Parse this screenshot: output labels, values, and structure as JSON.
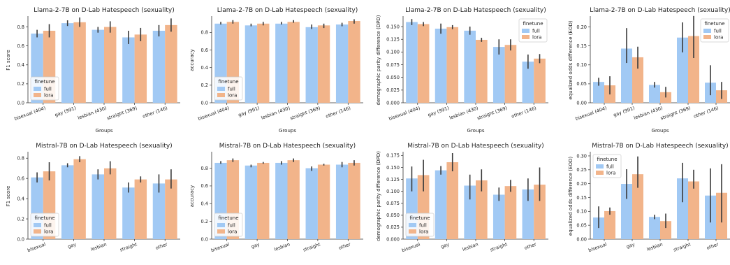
{
  "colors": {
    "full": "#a1c9f4",
    "lora": "#f2b48a",
    "errorbar": "#3a3a3a",
    "axis": "#333333"
  },
  "chart_data": [
    {
      "type": "bar",
      "title": "Llama-2-7B on D-Lab Hatespeech (sexuality)",
      "xlabel": "Groups",
      "ylabel": "F1 score",
      "categories": [
        "bisexual (404)",
        "gay (991)",
        "lesbian (430)",
        "straight (369)",
        "other (146)"
      ],
      "ylim": [
        0,
        0.9
      ],
      "yticks": [
        "0.0",
        "0.2",
        "0.4",
        "0.6",
        "0.8"
      ],
      "ytick_values": [
        0,
        0.2,
        0.4,
        0.6,
        0.8
      ],
      "legend": {
        "title": "finetune",
        "placement": "lower-left"
      },
      "series": [
        {
          "name": "full",
          "values": [
            0.73,
            0.84,
            0.77,
            0.69,
            0.76
          ],
          "err": [
            [
              0.69,
              0.77
            ],
            [
              0.81,
              0.87
            ],
            [
              0.74,
              0.8
            ],
            [
              0.62,
              0.76
            ],
            [
              0.7,
              0.82
            ]
          ]
        },
        {
          "name": "lora",
          "values": [
            0.76,
            0.85,
            0.8,
            0.72,
            0.82
          ],
          "err": [
            [
              0.69,
              0.83
            ],
            [
              0.8,
              0.9
            ],
            [
              0.74,
              0.86
            ],
            [
              0.65,
              0.79
            ],
            [
              0.75,
              0.89
            ]
          ]
        }
      ]
    },
    {
      "type": "bar",
      "title": "Llama-2-7B on D-Lab Hatespeech (sexuality)",
      "xlabel": "Groups",
      "ylabel": "accuracy",
      "categories": [
        "bisexual (404)",
        "gay (991)",
        "lesbian (430)",
        "straight (369)",
        "other (146)"
      ],
      "ylim": [
        0,
        0.97
      ],
      "yticks": [
        "0.0",
        "0.2",
        "0.4",
        "0.6",
        "0.8"
      ],
      "ytick_values": [
        0,
        0.2,
        0.4,
        0.6,
        0.8
      ],
      "legend": {
        "title": "finetune",
        "placement": "lower-left"
      },
      "series": [
        {
          "name": "full",
          "values": [
            0.9,
            0.88,
            0.9,
            0.86,
            0.89
          ],
          "err": [
            [
              0.89,
              0.92
            ],
            [
              0.87,
              0.9
            ],
            [
              0.89,
              0.92
            ],
            [
              0.84,
              0.89
            ],
            [
              0.87,
              0.91
            ]
          ]
        },
        {
          "name": "lora",
          "values": [
            0.92,
            0.9,
            0.92,
            0.88,
            0.93
          ],
          "err": [
            [
              0.9,
              0.94
            ],
            [
              0.88,
              0.92
            ],
            [
              0.91,
              0.94
            ],
            [
              0.85,
              0.9
            ],
            [
              0.9,
              0.95
            ]
          ]
        }
      ]
    },
    {
      "type": "bar",
      "title": "Llama-2-7B on D-Lab Hatespeech (sexuality)",
      "xlabel": "Groups",
      "ylabel": "demographic parity difference (DPD)",
      "categories": [
        "bisexual (404)",
        "gay (991)",
        "lesbian (430)",
        "straight (369)",
        "other (146)"
      ],
      "ylim": [
        0,
        0.168
      ],
      "yticks": [
        "0.000",
        "0.025",
        "0.050",
        "0.075",
        "0.100",
        "0.125",
        "0.150"
      ],
      "ytick_values": [
        0,
        0.025,
        0.05,
        0.075,
        0.1,
        0.125,
        0.15
      ],
      "legend": {
        "title": "finetune",
        "placement": "upper-right"
      },
      "series": [
        {
          "name": "full",
          "values": [
            0.159,
            0.146,
            0.142,
            0.11,
            0.081
          ],
          "err": [
            [
              0.153,
              0.165
            ],
            [
              0.136,
              0.156
            ],
            [
              0.134,
              0.15
            ],
            [
              0.095,
              0.125
            ],
            [
              0.067,
              0.095
            ]
          ]
        },
        {
          "name": "lora",
          "values": [
            0.155,
            0.149,
            0.124,
            0.114,
            0.087
          ],
          "err": [
            [
              0.151,
              0.159
            ],
            [
              0.145,
              0.153
            ],
            [
              0.12,
              0.128
            ],
            [
              0.103,
              0.125
            ],
            [
              0.078,
              0.096
            ]
          ]
        }
      ]
    },
    {
      "type": "bar",
      "title": "Llama-2-7B on D-Lab Hatespeech (sexuality)",
      "xlabel": "Groups",
      "ylabel": "equalized odds difference (EOD)",
      "categories": [
        "bisexual (404)",
        "gay (991)",
        "lesbian (430)",
        "straight (369)",
        "other (146)"
      ],
      "ylim": [
        0,
        0.225
      ],
      "yticks": [
        "0.00",
        "0.05",
        "0.10",
        "0.15",
        "0.20"
      ],
      "ytick_values": [
        0,
        0.05,
        0.1,
        0.15,
        0.2
      ],
      "legend": {
        "title": "finetune",
        "placement": "upper-right"
      },
      "series": [
        {
          "name": "full",
          "values": [
            0.055,
            0.143,
            0.047,
            0.172,
            0.053
          ],
          "err": [
            [
              0.045,
              0.066
            ],
            [
              0.105,
              0.197
            ],
            [
              0.04,
              0.055
            ],
            [
              0.133,
              0.212
            ],
            [
              0.02,
              0.099
            ]
          ]
        },
        {
          "name": "lora",
          "values": [
            0.046,
            0.12,
            0.028,
            0.176,
            0.033
          ],
          "err": [
            [
              0.022,
              0.07
            ],
            [
              0.09,
              0.148
            ],
            [
              0.014,
              0.042
            ],
            [
              0.118,
              0.229
            ],
            [
              0.01,
              0.055
            ]
          ]
        }
      ]
    },
    {
      "type": "bar",
      "title": "Mistral-7B on D-Lab Hatespeech (sexuality)",
      "xlabel": "Groups",
      "ylabel": "F1 score",
      "categories": [
        "bisexual",
        "gay",
        "lesbian",
        "straight",
        "other"
      ],
      "ylim": [
        0,
        0.85
      ],
      "yticks": [
        "0.0",
        "0.2",
        "0.4",
        "0.6",
        "0.8"
      ],
      "ytick_values": [
        0,
        0.2,
        0.4,
        0.6,
        0.8
      ],
      "legend": {
        "title": "finetune",
        "placement": "lower-left"
      },
      "series": [
        {
          "name": "full",
          "values": [
            0.61,
            0.73,
            0.64,
            0.51,
            0.55
          ],
          "err": [
            [
              0.56,
              0.66
            ],
            [
              0.71,
              0.75
            ],
            [
              0.59,
              0.69
            ],
            [
              0.46,
              0.56
            ],
            [
              0.46,
              0.64
            ]
          ]
        },
        {
          "name": "lora",
          "values": [
            0.67,
            0.79,
            0.7,
            0.59,
            0.59
          ],
          "err": [
            [
              0.58,
              0.76
            ],
            [
              0.76,
              0.82
            ],
            [
              0.64,
              0.77
            ],
            [
              0.56,
              0.62
            ],
            [
              0.5,
              0.69
            ]
          ]
        }
      ]
    },
    {
      "type": "bar",
      "title": "Mistral-7B on D-Lab Hatespeech (sexuality)",
      "xlabel": "Groups",
      "ylabel": "accuracy",
      "categories": [
        "bisexual",
        "gay",
        "lesbian",
        "straight",
        "other"
      ],
      "ylim": [
        0,
        0.97
      ],
      "yticks": [
        "0.0",
        "0.2",
        "0.4",
        "0.6",
        "0.8"
      ],
      "ytick_values": [
        0,
        0.2,
        0.4,
        0.6,
        0.8
      ],
      "legend": {
        "title": "finetune",
        "placement": "lower-left"
      },
      "series": [
        {
          "name": "full",
          "values": [
            0.86,
            0.83,
            0.86,
            0.8,
            0.84
          ],
          "err": [
            [
              0.85,
              0.88
            ],
            [
              0.81,
              0.84
            ],
            [
              0.84,
              0.88
            ],
            [
              0.77,
              0.82
            ],
            [
              0.81,
              0.87
            ]
          ]
        },
        {
          "name": "lora",
          "values": [
            0.89,
            0.86,
            0.89,
            0.84,
            0.86
          ],
          "err": [
            [
              0.87,
              0.91
            ],
            [
              0.85,
              0.87
            ],
            [
              0.87,
              0.91
            ],
            [
              0.83,
              0.85
            ],
            [
              0.83,
              0.89
            ]
          ]
        }
      ]
    },
    {
      "type": "bar",
      "title": "Mistral-7B on D-Lab Hatespeech (sexuality)",
      "xlabel": "Groups",
      "ylabel": "demographic parity difference (DPD)",
      "categories": [
        "bisexual",
        "gay",
        "lesbian",
        "straight",
        "other"
      ],
      "ylim": [
        0,
        0.18
      ],
      "yticks": [
        "0.000",
        "0.025",
        "0.050",
        "0.075",
        "0.100",
        "0.125",
        "0.150",
        "0.175"
      ],
      "ytick_values": [
        0,
        0.025,
        0.05,
        0.075,
        0.1,
        0.125,
        0.15,
        0.175
      ],
      "legend": {
        "title": "finetune",
        "placement": "lower-left"
      },
      "series": [
        {
          "name": "full",
          "values": [
            0.127,
            0.144,
            0.112,
            0.093,
            0.104
          ],
          "err": [
            [
              0.1,
              0.152
            ],
            [
              0.135,
              0.153
            ],
            [
              0.083,
              0.135
            ],
            [
              0.08,
              0.108
            ],
            [
              0.08,
              0.127
            ]
          ]
        },
        {
          "name": "lora",
          "values": [
            0.134,
            0.161,
            0.123,
            0.111,
            0.114
          ],
          "err": [
            [
              0.1,
              0.166
            ],
            [
              0.142,
              0.18
            ],
            [
              0.1,
              0.146
            ],
            [
              0.099,
              0.124
            ],
            [
              0.08,
              0.15
            ]
          ]
        }
      ]
    },
    {
      "type": "bar",
      "title": "Mistral-7B on D-Lab Hatespeech (sexuality)",
      "xlabel": "Groups",
      "ylabel": "equalized odds difference (EOD)",
      "categories": [
        "bisexual",
        "gay",
        "lesbian",
        "straight",
        "other"
      ],
      "ylim": [
        0,
        0.31
      ],
      "yticks": [
        "0.00",
        "0.05",
        "0.10",
        "0.15",
        "0.20",
        "0.25",
        "0.30"
      ],
      "ytick_values": [
        0,
        0.05,
        0.1,
        0.15,
        0.2,
        0.25,
        0.3
      ],
      "legend": {
        "title": "finetune",
        "placement": "upper-left"
      },
      "series": [
        {
          "name": "full",
          "values": [
            0.078,
            0.199,
            0.08,
            0.219,
            0.157
          ],
          "err": [
            [
              0.04,
              0.118
            ],
            [
              0.145,
              0.252
            ],
            [
              0.072,
              0.088
            ],
            [
              0.133,
              0.275
            ],
            [
              0.06,
              0.255
            ]
          ]
        },
        {
          "name": "lora",
          "values": [
            0.101,
            0.234,
            0.065,
            0.208,
            0.167
          ],
          "err": [
            [
              0.088,
              0.114
            ],
            [
              0.185,
              0.298
            ],
            [
              0.04,
              0.092
            ],
            [
              0.182,
              0.25
            ],
            [
              0.06,
              0.27
            ]
          ]
        }
      ]
    }
  ]
}
